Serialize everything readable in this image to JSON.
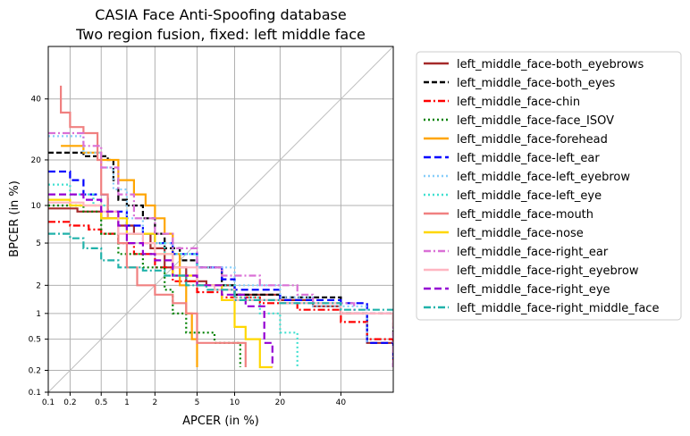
{
  "chart_data": {
    "type": "line",
    "title": [
      "CASIA Face Anti-Spoofing database",
      "Two region fusion, fixed: left middle face"
    ],
    "xlabel": "APCER (in %)",
    "ylabel": "BPCER (in %)",
    "x_scale": "probit",
    "y_scale": "probit",
    "xlim": [
      0.1,
      60
    ],
    "ylim": [
      0.1,
      60
    ],
    "x_ticks": [
      0.1,
      0.2,
      0.5,
      1,
      2,
      5,
      10,
      20,
      40
    ],
    "x_tick_labels": [
      "0.1",
      "0.2",
      "0.5",
      "1",
      "2",
      "5",
      "10",
      "20",
      "40"
    ],
    "y_ticks": [
      0.1,
      0.2,
      0.5,
      1,
      2,
      5,
      10,
      20,
      40
    ],
    "y_tick_labels": [
      "0.1",
      "0.2",
      "0.5",
      "1",
      "2",
      "5",
      "10",
      "20",
      "40"
    ],
    "grid": true,
    "legend_position": "outside-right",
    "diagonal": true,
    "series": [
      {
        "name": "left_middle_face-both_eyebrows",
        "color": "#a52a2a",
        "dash": "solid",
        "points": [
          [
            0.1,
            9.5
          ],
          [
            0.2,
            9.5
          ],
          [
            0.25,
            9
          ],
          [
            0.5,
            8
          ],
          [
            0.8,
            7
          ],
          [
            1.2,
            6
          ],
          [
            1.8,
            4.5
          ],
          [
            2.5,
            3
          ],
          [
            4,
            2.2
          ],
          [
            6,
            2
          ],
          [
            10,
            1.6
          ],
          [
            20,
            1.4
          ],
          [
            30,
            1.2
          ],
          [
            40,
            1
          ],
          [
            50,
            0.45
          ],
          [
            60,
            0.45
          ]
        ]
      },
      {
        "name": "left_middle_face-both_eyes",
        "color": "#000000",
        "dash": "6,3",
        "points": [
          [
            0.1,
            22
          ],
          [
            0.3,
            21
          ],
          [
            0.6,
            20
          ],
          [
            0.7,
            15
          ],
          [
            0.8,
            11
          ],
          [
            1,
            10
          ],
          [
            1.5,
            8
          ],
          [
            2,
            6
          ],
          [
            2.5,
            4.5
          ],
          [
            3.5,
            3.5
          ],
          [
            5,
            3
          ],
          [
            8,
            2
          ],
          [
            10,
            1.6
          ],
          [
            20,
            1.5
          ],
          [
            40,
            1
          ],
          [
            60,
            0.45
          ]
        ]
      },
      {
        "name": "left_middle_face-chin",
        "color": "#ff0000",
        "dash": "8,3,2,3",
        "points": [
          [
            0.1,
            7.5
          ],
          [
            0.2,
            7
          ],
          [
            0.35,
            6.5
          ],
          [
            0.5,
            6
          ],
          [
            0.8,
            5
          ],
          [
            1.2,
            4
          ],
          [
            2,
            3
          ],
          [
            3,
            2.2
          ],
          [
            5,
            1.7
          ],
          [
            8,
            1.5
          ],
          [
            15,
            1.3
          ],
          [
            25,
            1.1
          ],
          [
            40,
            0.8
          ],
          [
            50,
            0.5
          ],
          [
            60,
            0.22
          ]
        ]
      },
      {
        "name": "left_middle_face-face_ISOV",
        "color": "#008000",
        "dash": "2,3",
        "points": [
          [
            0.1,
            10
          ],
          [
            0.3,
            9
          ],
          [
            0.5,
            6
          ],
          [
            0.8,
            4
          ],
          [
            1.5,
            3
          ],
          [
            2.5,
            1.8
          ],
          [
            3,
            1
          ],
          [
            4,
            0.6
          ],
          [
            6,
            0.6
          ],
          [
            7,
            0.45
          ],
          [
            10,
            0.45
          ],
          [
            11,
            0.22
          ]
        ]
      },
      {
        "name": "left_middle_face-forehead",
        "color": "#ffa500",
        "dash": "solid",
        "points": [
          [
            0.15,
            24
          ],
          [
            0.3,
            22
          ],
          [
            0.5,
            20
          ],
          [
            0.8,
            15
          ],
          [
            1.2,
            12
          ],
          [
            1.6,
            10
          ],
          [
            2,
            8
          ],
          [
            2.5,
            6
          ],
          [
            3,
            4
          ],
          [
            3.5,
            2
          ],
          [
            4,
            1
          ],
          [
            4.5,
            0.5
          ],
          [
            5,
            0.22
          ]
        ]
      },
      {
        "name": "left_middle_face-left_ear",
        "color": "#0000ff",
        "dash": "8,4",
        "points": [
          [
            0.1,
            17
          ],
          [
            0.2,
            15
          ],
          [
            0.3,
            12
          ],
          [
            0.6,
            9
          ],
          [
            1,
            7
          ],
          [
            1.5,
            6
          ],
          [
            2,
            5
          ],
          [
            3,
            4
          ],
          [
            5,
            3
          ],
          [
            8,
            2.3
          ],
          [
            10,
            1.8
          ],
          [
            20,
            1.4
          ],
          [
            40,
            1.3
          ],
          [
            50,
            0.45
          ],
          [
            60,
            0.22
          ]
        ]
      },
      {
        "name": "left_middle_face-left_eyebrow",
        "color": "#87cefa",
        "dash": "2,3",
        "points": [
          [
            0.1,
            27
          ],
          [
            0.3,
            22
          ],
          [
            0.5,
            18
          ],
          [
            0.7,
            13
          ],
          [
            1,
            8
          ],
          [
            1.5,
            6
          ],
          [
            2,
            5
          ],
          [
            3,
            4
          ],
          [
            5,
            3
          ],
          [
            10,
            2
          ],
          [
            20,
            1.5
          ],
          [
            30,
            1.2
          ],
          [
            50,
            0.45
          ]
        ]
      },
      {
        "name": "left_middle_face-left_eye",
        "color": "#40e0d0",
        "dash": "2,3",
        "points": [
          [
            0.1,
            14
          ],
          [
            0.2,
            12
          ],
          [
            0.4,
            10
          ],
          [
            0.6,
            8
          ],
          [
            1,
            6
          ],
          [
            1.5,
            5
          ],
          [
            2.5,
            4
          ],
          [
            5,
            2
          ],
          [
            10,
            1.5
          ],
          [
            15,
            1
          ],
          [
            20,
            0.6
          ],
          [
            25,
            0.22
          ]
        ]
      },
      {
        "name": "left_middle_face-mouth",
        "color": "#f08080",
        "dash": "solid",
        "points": [
          [
            0.15,
            45
          ],
          [
            0.15,
            35
          ],
          [
            0.2,
            30
          ],
          [
            0.3,
            28
          ],
          [
            0.45,
            20
          ],
          [
            0.5,
            12
          ],
          [
            0.6,
            8
          ],
          [
            0.8,
            5
          ],
          [
            1,
            3
          ],
          [
            1.3,
            2
          ],
          [
            2,
            1.6
          ],
          [
            3,
            1.3
          ],
          [
            4,
            1
          ],
          [
            5,
            0.45
          ],
          [
            10,
            0.45
          ],
          [
            12,
            0.22
          ]
        ]
      },
      {
        "name": "left_middle_face-nose",
        "color": "#ffd700",
        "dash": "solid",
        "points": [
          [
            0.1,
            11
          ],
          [
            0.2,
            10
          ],
          [
            0.5,
            8
          ],
          [
            1,
            6
          ],
          [
            2,
            4
          ],
          [
            3,
            2.5
          ],
          [
            5,
            2
          ],
          [
            8,
            1.4
          ],
          [
            10,
            0.7
          ],
          [
            12,
            0.5
          ],
          [
            15,
            0.22
          ],
          [
            18,
            0.22
          ]
        ]
      },
      {
        "name": "left_middle_face-right_ear",
        "color": "#da70d6",
        "dash": "8,3,2,3",
        "points": [
          [
            0.1,
            28
          ],
          [
            0.3,
            24
          ],
          [
            0.5,
            18
          ],
          [
            0.8,
            12
          ],
          [
            1.2,
            8
          ],
          [
            2,
            6
          ],
          [
            3,
            4.5
          ],
          [
            5,
            3
          ],
          [
            8,
            2.5
          ],
          [
            15,
            2
          ],
          [
            25,
            1.6
          ],
          [
            30,
            1.3
          ],
          [
            45,
            1
          ],
          [
            60,
            0.22
          ]
        ]
      },
      {
        "name": "left_middle_face-right_eyebrow",
        "color": "#ffb6c1",
        "dash": "solid",
        "points": [
          [
            0.1,
            10.5
          ],
          [
            0.3,
            10
          ],
          [
            0.5,
            9
          ],
          [
            0.8,
            6
          ],
          [
            1.5,
            5
          ],
          [
            2,
            4
          ],
          [
            3,
            3
          ],
          [
            5,
            2
          ],
          [
            7,
            1.8
          ],
          [
            10,
            1.4
          ],
          [
            20,
            1.3
          ],
          [
            40,
            1
          ],
          [
            60,
            0.7
          ]
        ]
      },
      {
        "name": "left_middle_face-right_eye",
        "color": "#9400d3",
        "dash": "8,4",
        "points": [
          [
            0.1,
            12
          ],
          [
            0.3,
            11
          ],
          [
            0.5,
            9
          ],
          [
            0.8,
            7
          ],
          [
            1,
            5
          ],
          [
            1.5,
            4
          ],
          [
            2,
            3.5
          ],
          [
            3,
            2.5
          ],
          [
            5,
            2
          ],
          [
            8,
            1.6
          ],
          [
            12,
            1.2
          ],
          [
            16,
            0.45
          ],
          [
            18,
            0.22
          ]
        ]
      },
      {
        "name": "left_middle_face-right_middle_face",
        "color": "#20b2aa",
        "dash": "8,3,2,3",
        "points": [
          [
            0.1,
            6
          ],
          [
            0.2,
            5.5
          ],
          [
            0.3,
            4.5
          ],
          [
            0.5,
            3.5
          ],
          [
            0.8,
            3
          ],
          [
            1.5,
            2.8
          ],
          [
            2.5,
            2.5
          ],
          [
            4,
            2
          ],
          [
            6,
            1.8
          ],
          [
            10,
            1.4
          ],
          [
            20,
            1.3
          ],
          [
            40,
            1.1
          ],
          [
            60,
            1
          ]
        ]
      }
    ]
  }
}
